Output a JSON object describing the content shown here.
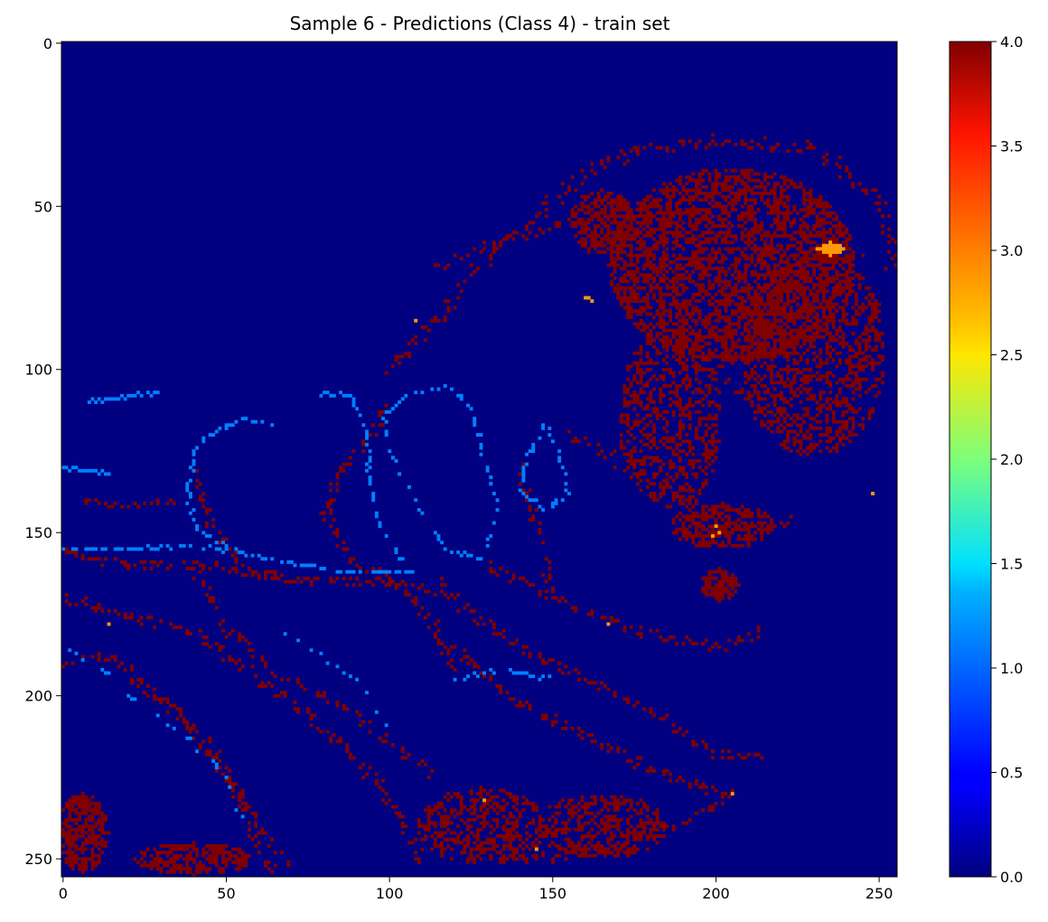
{
  "chart_data": {
    "type": "heatmap",
    "title": "Sample 6 - Predictions (Class 4) - train set",
    "xlabel": "",
    "ylabel": "",
    "grid_size": [
      256,
      256
    ],
    "xlim": [
      0,
      255
    ],
    "ylim": [
      255,
      0
    ],
    "x_ticks": [
      0,
      50,
      100,
      150,
      200,
      250
    ],
    "y_ticks": [
      0,
      50,
      100,
      150,
      200,
      250
    ],
    "colormap": "jet",
    "colorbar": {
      "range": [
        0.0,
        4.0
      ],
      "ticks": [
        "0.0",
        "0.5",
        "1.0",
        "1.5",
        "2.0",
        "2.5",
        "3.0",
        "3.5",
        "4.0"
      ]
    },
    "background_value": 0,
    "regions": [
      {
        "value": 4,
        "x": [
          145,
          250
        ],
        "y": [
          28,
          140
        ],
        "note": "upper-right cluster"
      },
      {
        "value": 4,
        "x": [
          0,
          110
        ],
        "y": [
          105,
          255
        ],
        "note": "left diagonal bands"
      },
      {
        "value": 4,
        "x": [
          110,
          230
        ],
        "y": [
          125,
          255
        ],
        "note": "lower-middle bands"
      },
      {
        "value": 4,
        "x": [
          95,
          155
        ],
        "y": [
          40,
          110
        ],
        "note": "upper arc"
      },
      {
        "value": 4,
        "x": [
          0,
          15
        ],
        "y": [
          228,
          255
        ],
        "note": "bottom-left block"
      },
      {
        "value": 1,
        "x": [
          40,
          170
        ],
        "y": [
          105,
          240
        ],
        "note": "outline contours"
      },
      {
        "value": 3,
        "x": [
          230,
          240
        ],
        "y": [
          61,
          65
        ],
        "note": "small patch"
      }
    ]
  },
  "colors": {
    "background": "#000080",
    "class_1": "#0080ff",
    "class_3": "#ff9900",
    "class_4": "#800000"
  }
}
